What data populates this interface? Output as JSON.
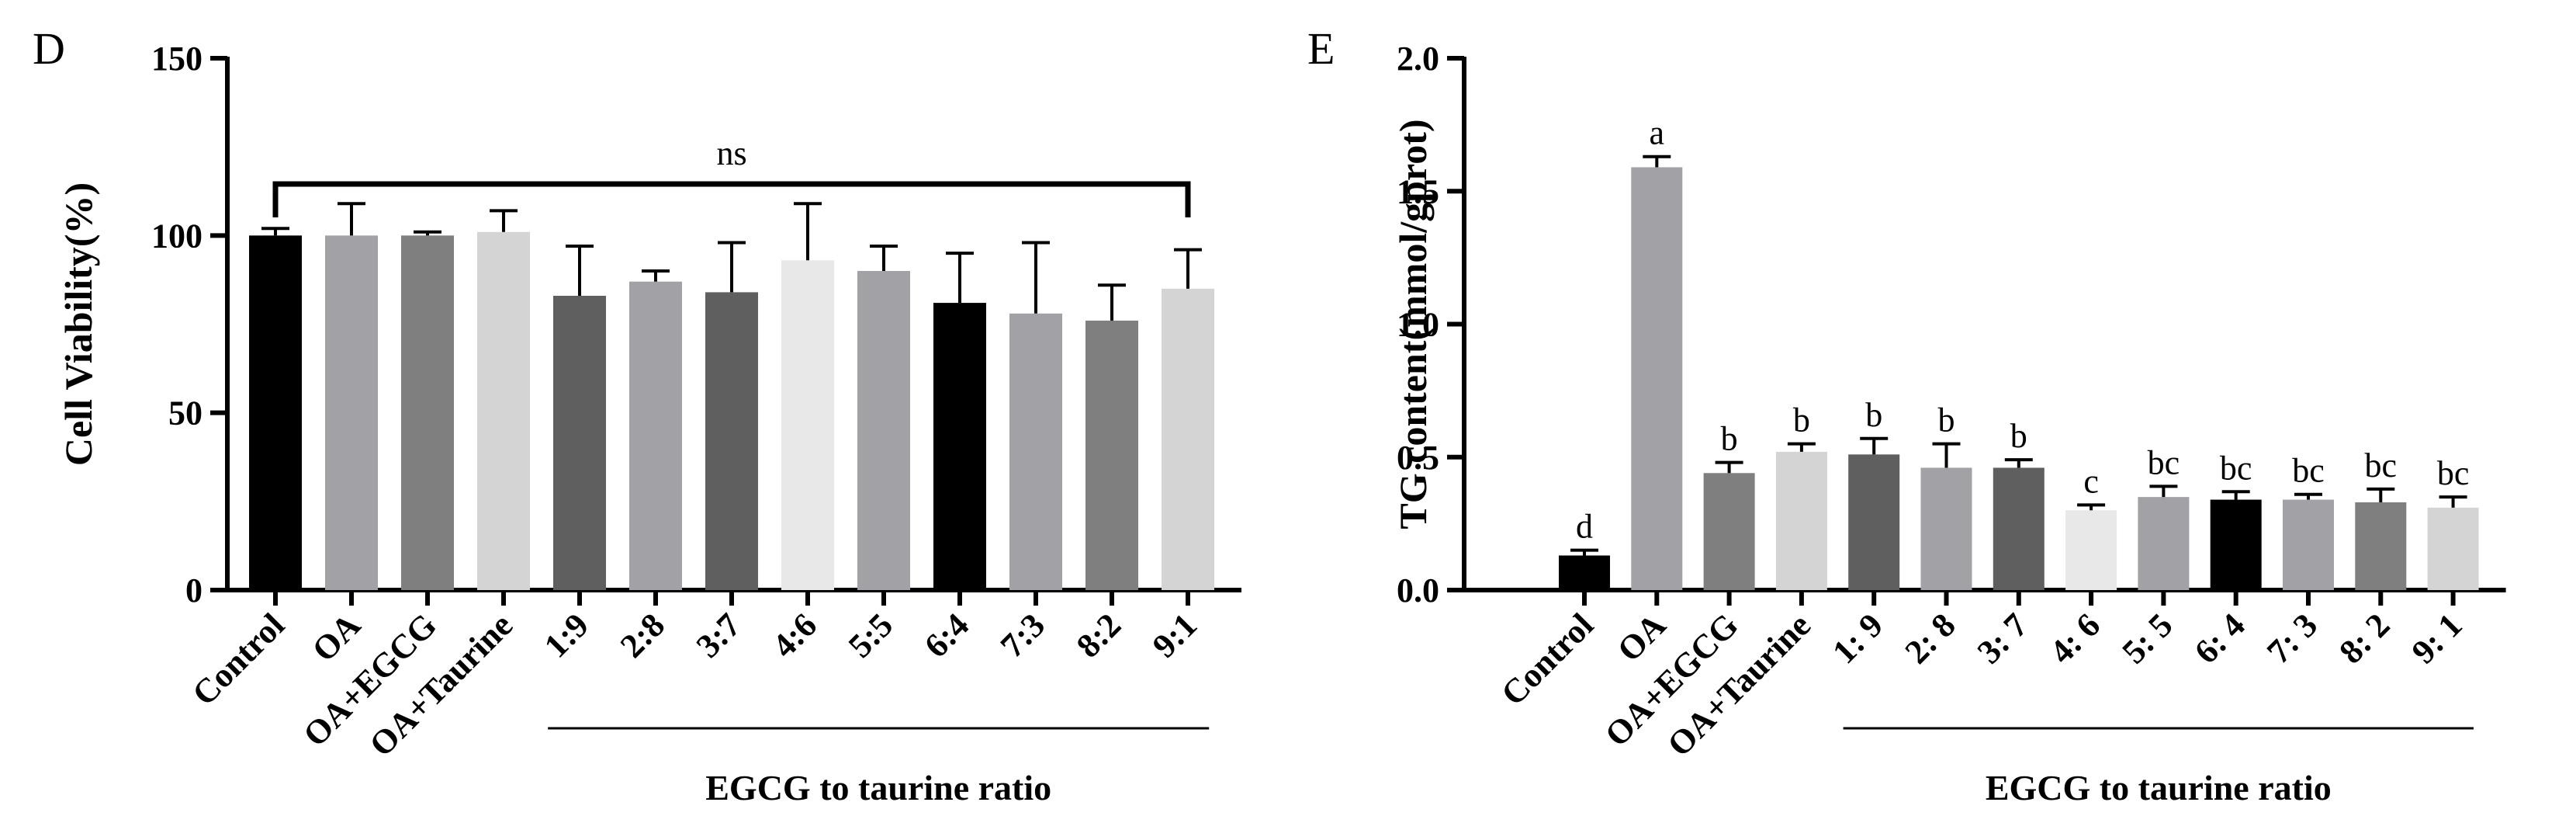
{
  "chart_data": [
    {
      "panel": "D",
      "type": "bar",
      "ylabel": "Cell Viability(%)",
      "xlabel": "",
      "ylim": [
        0,
        150
      ],
      "yticks": [
        "0",
        "50",
        "100",
        "150"
      ],
      "categories": [
        "Control",
        "OA",
        "OA+EGCG",
        "OA+Taurine",
        "1:9",
        "2:8",
        "3:7",
        "4:6",
        "5:5",
        "6:4",
        "7:3",
        "8:2",
        "9:1"
      ],
      "values": [
        100,
        100,
        100,
        101,
        83,
        87,
        84,
        93,
        90,
        81,
        78,
        76,
        85
      ],
      "errors": [
        2,
        9,
        1,
        6,
        14,
        3,
        14,
        16,
        7,
        14,
        20,
        10,
        11
      ],
      "colors": [
        "#000000",
        "#a2a2a6",
        "#7f7f7f",
        "#d4d4d4",
        "#5f5f5f",
        "#a2a2a6",
        "#5f5f5f",
        "#e8e8e8",
        "#a2a2a6",
        "#000000",
        "#a2a2a6",
        "#7f7f7f",
        "#d4d4d4"
      ],
      "group_label": "EGCG to taurine ratio",
      "group_range": [
        "1:9",
        "9:1"
      ],
      "annotation": "ns",
      "annotation_span": [
        "Control",
        "9:1"
      ]
    },
    {
      "panel": "E",
      "type": "bar",
      "ylabel": "TG content(mmol/gprot)",
      "xlabel": "",
      "ylim": [
        0,
        2.0
      ],
      "yticks": [
        "0.0",
        "0.5",
        "1.0",
        "1.5",
        "2.0"
      ],
      "categories": [
        "Control",
        "OA",
        "OA+EGCG",
        "OA+Taurine",
        "1: 9",
        "2: 8",
        "3: 7",
        "4: 6",
        "5: 5",
        "6: 4",
        "7: 3",
        "8: 2",
        "9: 1"
      ],
      "values": [
        0.13,
        1.59,
        0.44,
        0.52,
        0.51,
        0.46,
        0.46,
        0.3,
        0.35,
        0.34,
        0.34,
        0.33,
        0.31
      ],
      "errors": [
        0.02,
        0.04,
        0.04,
        0.03,
        0.06,
        0.09,
        0.03,
        0.02,
        0.04,
        0.03,
        0.02,
        0.05,
        0.04
      ],
      "colors": [
        "#000000",
        "#a2a2a6",
        "#7f7f7f",
        "#d4d4d4",
        "#5f5f5f",
        "#a2a2a6",
        "#5f5f5f",
        "#e8e8e8",
        "#a2a2a6",
        "#000000",
        "#a2a2a6",
        "#7f7f7f",
        "#d4d4d4"
      ],
      "significance": [
        "d",
        "a",
        "b",
        "b",
        "b",
        "b",
        "b",
        "c",
        "bc",
        "bc",
        "bc",
        "bc",
        "bc"
      ],
      "group_label": "EGCG to taurine ratio",
      "group_range": [
        "1: 9",
        "9: 1"
      ]
    }
  ]
}
